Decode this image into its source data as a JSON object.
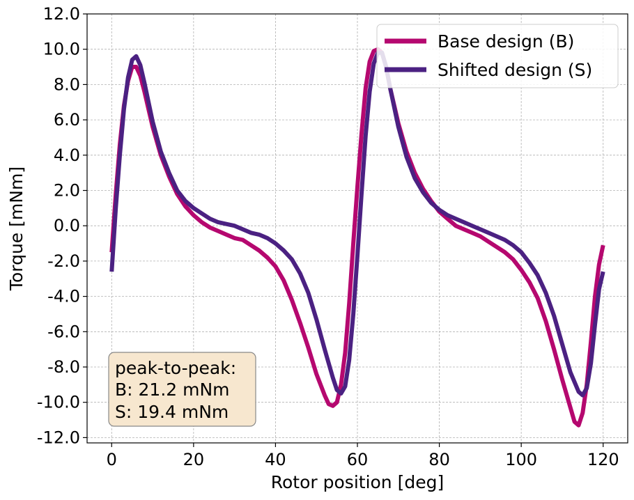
{
  "chart_data": {
    "type": "line",
    "title": "",
    "xlabel": "Rotor position [deg]",
    "ylabel": "Torque [mNm]",
    "xlim": [
      -6,
      126
    ],
    "ylim": [
      -12.3,
      12.0
    ],
    "xticks": [
      0,
      20,
      40,
      60,
      80,
      100,
      120
    ],
    "xtick_labels": [
      "0",
      "20",
      "40",
      "60",
      "80",
      "100",
      "120"
    ],
    "yticks": [
      12,
      10,
      8,
      6,
      4,
      2,
      0,
      -2,
      -4,
      -6,
      -8,
      -10,
      -12
    ],
    "ytick_labels": [
      "12.0",
      "10.0",
      "8.0",
      "6.0",
      "4.0",
      "2.0",
      "0.0",
      "-2.0",
      "-4.0",
      "-6.0",
      "-8.0",
      "-10.0",
      "-12.0"
    ],
    "grid": true,
    "legend_position": "top-right",
    "series": [
      {
        "name": "Base design (B)",
        "color": "#b5086f",
        "points": [
          [
            0,
            -1.5
          ],
          [
            1,
            1.8
          ],
          [
            2,
            4.6
          ],
          [
            3,
            6.8
          ],
          [
            4,
            8.2
          ],
          [
            5,
            9.0
          ],
          [
            6,
            9.0
          ],
          [
            7,
            8.5
          ],
          [
            8,
            7.6
          ],
          [
            9,
            6.6
          ],
          [
            10,
            5.6
          ],
          [
            12,
            4.0
          ],
          [
            14,
            2.8
          ],
          [
            16,
            1.8
          ],
          [
            18,
            1.1
          ],
          [
            20,
            0.6
          ],
          [
            22,
            0.2
          ],
          [
            24,
            -0.1
          ],
          [
            26,
            -0.3
          ],
          [
            28,
            -0.5
          ],
          [
            30,
            -0.7
          ],
          [
            32,
            -0.8
          ],
          [
            34,
            -1.1
          ],
          [
            36,
            -1.4
          ],
          [
            38,
            -1.8
          ],
          [
            40,
            -2.3
          ],
          [
            42,
            -3.1
          ],
          [
            44,
            -4.2
          ],
          [
            46,
            -5.5
          ],
          [
            48,
            -6.9
          ],
          [
            50,
            -8.4
          ],
          [
            52,
            -9.6
          ],
          [
            53,
            -10.1
          ],
          [
            54,
            -10.2
          ],
          [
            55,
            -10.0
          ],
          [
            56,
            -9.0
          ],
          [
            57,
            -7.2
          ],
          [
            58,
            -4.4
          ],
          [
            59,
            -1.0
          ],
          [
            60,
            2.2
          ],
          [
            61,
            5.2
          ],
          [
            62,
            7.8
          ],
          [
            63,
            9.3
          ],
          [
            64,
            9.9
          ],
          [
            65,
            10.0
          ],
          [
            66,
            9.8
          ],
          [
            67,
            9.0
          ],
          [
            68,
            7.8
          ],
          [
            70,
            5.8
          ],
          [
            72,
            4.2
          ],
          [
            74,
            3.0
          ],
          [
            76,
            2.1
          ],
          [
            78,
            1.4
          ],
          [
            80,
            0.8
          ],
          [
            82,
            0.4
          ],
          [
            84,
            0.0
          ],
          [
            86,
            -0.2
          ],
          [
            88,
            -0.4
          ],
          [
            90,
            -0.6
          ],
          [
            92,
            -0.9
          ],
          [
            94,
            -1.2
          ],
          [
            96,
            -1.5
          ],
          [
            98,
            -1.9
          ],
          [
            100,
            -2.5
          ],
          [
            102,
            -3.2
          ],
          [
            104,
            -4.1
          ],
          [
            106,
            -5.4
          ],
          [
            108,
            -7.0
          ],
          [
            110,
            -8.7
          ],
          [
            112,
            -10.3
          ],
          [
            113,
            -11.1
          ],
          [
            114,
            -11.3
          ],
          [
            115,
            -10.6
          ],
          [
            116,
            -9.0
          ],
          [
            117,
            -6.6
          ],
          [
            118,
            -4.0
          ],
          [
            119,
            -2.2
          ],
          [
            120,
            -1.1
          ]
        ]
      },
      {
        "name": "Shifted design (S)",
        "color": "#4b2182",
        "points": [
          [
            0,
            -2.6
          ],
          [
            1,
            1.0
          ],
          [
            2,
            4.0
          ],
          [
            3,
            6.6
          ],
          [
            4,
            8.4
          ],
          [
            5,
            9.4
          ],
          [
            6,
            9.6
          ],
          [
            7,
            9.1
          ],
          [
            8,
            8.1
          ],
          [
            9,
            7.0
          ],
          [
            10,
            5.9
          ],
          [
            12,
            4.2
          ],
          [
            14,
            3.0
          ],
          [
            16,
            2.0
          ],
          [
            18,
            1.4
          ],
          [
            20,
            1.0
          ],
          [
            22,
            0.7
          ],
          [
            24,
            0.4
          ],
          [
            26,
            0.2
          ],
          [
            28,
            0.1
          ],
          [
            30,
            0.0
          ],
          [
            32,
            -0.2
          ],
          [
            34,
            -0.4
          ],
          [
            36,
            -0.5
          ],
          [
            38,
            -0.7
          ],
          [
            40,
            -1.0
          ],
          [
            42,
            -1.4
          ],
          [
            44,
            -1.9
          ],
          [
            46,
            -2.7
          ],
          [
            48,
            -3.8
          ],
          [
            50,
            -5.3
          ],
          [
            52,
            -7.0
          ],
          [
            54,
            -8.6
          ],
          [
            55,
            -9.3
          ],
          [
            56,
            -9.5
          ],
          [
            57,
            -9.1
          ],
          [
            58,
            -7.6
          ],
          [
            59,
            -5.0
          ],
          [
            60,
            -1.7
          ],
          [
            61,
            1.8
          ],
          [
            62,
            5.1
          ],
          [
            63,
            7.6
          ],
          [
            64,
            9.2
          ],
          [
            65,
            9.8
          ],
          [
            66,
            9.8
          ],
          [
            67,
            9.0
          ],
          [
            68,
            7.8
          ],
          [
            70,
            5.6
          ],
          [
            72,
            3.9
          ],
          [
            74,
            2.7
          ],
          [
            76,
            1.9
          ],
          [
            78,
            1.3
          ],
          [
            80,
            0.9
          ],
          [
            82,
            0.6
          ],
          [
            84,
            0.4
          ],
          [
            86,
            0.2
          ],
          [
            88,
            0.0
          ],
          [
            90,
            -0.2
          ],
          [
            92,
            -0.4
          ],
          [
            94,
            -0.6
          ],
          [
            96,
            -0.8
          ],
          [
            98,
            -1.1
          ],
          [
            100,
            -1.5
          ],
          [
            102,
            -2.1
          ],
          [
            104,
            -2.8
          ],
          [
            106,
            -3.8
          ],
          [
            108,
            -5.1
          ],
          [
            110,
            -6.7
          ],
          [
            112,
            -8.3
          ],
          [
            114,
            -9.4
          ],
          [
            115,
            -9.6
          ],
          [
            116,
            -9.2
          ],
          [
            117,
            -7.8
          ],
          [
            118,
            -5.6
          ],
          [
            119,
            -3.6
          ],
          [
            120,
            -2.6
          ]
        ]
      }
    ],
    "annotation": {
      "lines": [
        "peak-to-peak:",
        "B: 21.2 mNm",
        "S: 19.4 mNm"
      ],
      "background": "#f7e7cf",
      "border": "#888888"
    }
  }
}
